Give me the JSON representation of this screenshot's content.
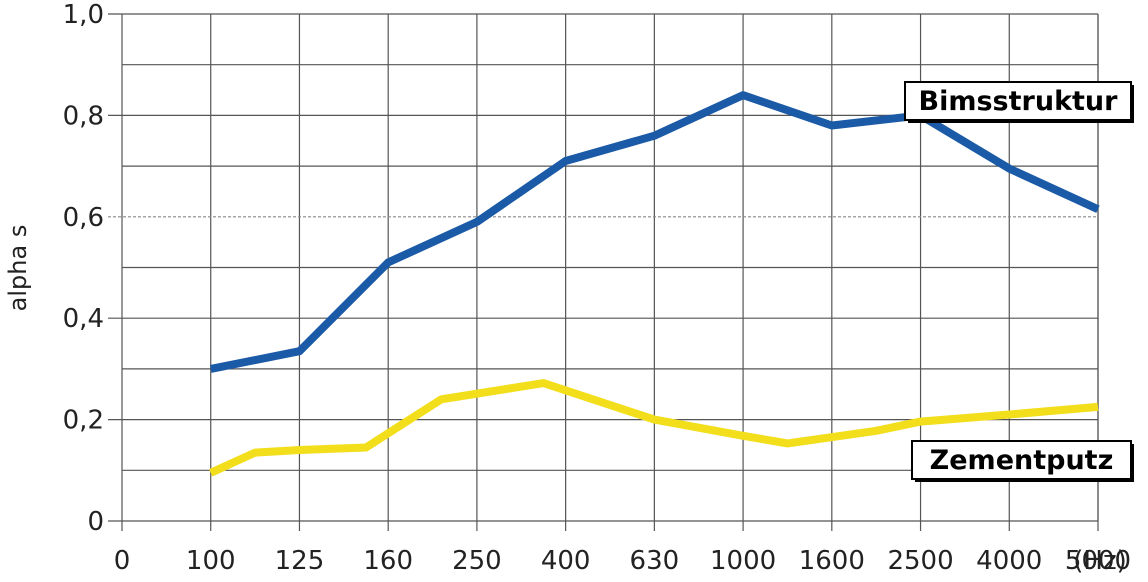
{
  "chart_data": {
    "type": "line",
    "title": "",
    "xlabel": "",
    "ylabel": "alpha s",
    "x_tick_labels": [
      "0",
      "100",
      "125",
      "160",
      "250",
      "400",
      "630",
      "1000",
      "1600",
      "2500",
      "4000",
      "5000"
    ],
    "x_unit": "(Hz)",
    "y_tick_labels": [
      "0",
      "0,2",
      "0,4",
      "0,6",
      "0,8",
      "1,0"
    ],
    "ylim": [
      0,
      1.0
    ],
    "grid": true,
    "series": [
      {
        "name": "Bimsstruktur",
        "color": "#1a5aa6",
        "points": [
          [
            1,
            0.3
          ],
          [
            2,
            0.335
          ],
          [
            3,
            0.51
          ],
          [
            4,
            0.59
          ],
          [
            5,
            0.71
          ],
          [
            6,
            0.76
          ],
          [
            7,
            0.84
          ],
          [
            8,
            0.78
          ],
          [
            9,
            0.8
          ],
          [
            10,
            0.695
          ],
          [
            11,
            0.615
          ]
        ]
      },
      {
        "name": "Zementputz",
        "color": "#f2de1a",
        "points": [
          [
            1,
            0.095
          ],
          [
            1.5,
            0.135
          ],
          [
            2,
            0.14
          ],
          [
            2.75,
            0.145
          ],
          [
            3.6,
            0.24
          ],
          [
            4.75,
            0.272
          ],
          [
            6,
            0.2
          ],
          [
            7,
            0.168
          ],
          [
            7.5,
            0.153
          ],
          [
            8.5,
            0.178
          ],
          [
            9,
            0.196
          ],
          [
            10,
            0.21
          ],
          [
            11,
            0.225
          ]
        ]
      }
    ],
    "legend": "inline-right"
  }
}
